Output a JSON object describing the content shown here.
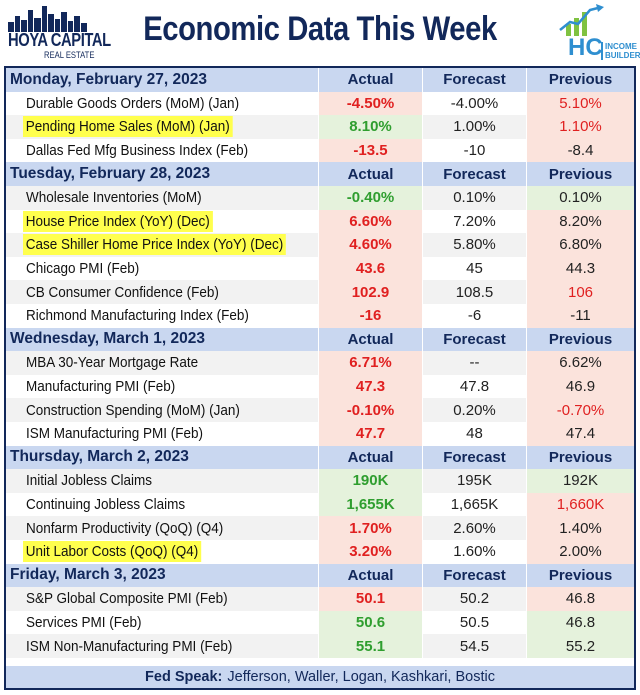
{
  "header": {
    "logo_left_line1": "HOYA CAPITAL",
    "logo_left_line2": "REAL ESTATE",
    "title": "Economic Data This Week",
    "logo_right_hc": "HC",
    "logo_right_line1": "INCOME",
    "logo_right_line2": "BUILDER"
  },
  "columns": {
    "actual": "Actual",
    "forecast": "Forecast",
    "previous": "Previous"
  },
  "days": [
    {
      "label": "Monday, February 27, 2023",
      "rows": [
        {
          "name": "Durable Goods Orders (MoM) (Jan)",
          "actual": "-4.50%",
          "forecast": "-4.00%",
          "previous": "5.10%",
          "highlight": false,
          "actual_tone": "red",
          "previous_tone": "red"
        },
        {
          "name": "Pending Home Sales (MoM) (Jan)",
          "actual": "8.10%",
          "forecast": "1.00%",
          "previous": "1.10%",
          "highlight": true,
          "actual_tone": "green",
          "previous_tone": "red"
        },
        {
          "name": "Dallas Fed Mfg Business Index (Feb)",
          "actual": "-13.5",
          "forecast": "-10",
          "previous": "-8.4",
          "highlight": false,
          "actual_tone": "red",
          "previous_tone": "plain-red"
        }
      ]
    },
    {
      "label": "Tuesday, February 28, 2023",
      "rows": [
        {
          "name": "Wholesale Inventories (MoM)",
          "actual": "-0.40%",
          "forecast": "0.10%",
          "previous": "0.10%",
          "highlight": false,
          "actual_tone": "green",
          "previous_tone": "plain-green"
        },
        {
          "name": "House Price Index (YoY) (Dec)",
          "actual": "6.60%",
          "forecast": "7.20%",
          "previous": "8.20%",
          "highlight": true,
          "actual_tone": "red",
          "previous_tone": "plain-red"
        },
        {
          "name": "Case Shiller Home Price Index (YoY) (Dec)",
          "actual": "4.60%",
          "forecast": "5.80%",
          "previous": "6.80%",
          "highlight": true,
          "actual_tone": "red",
          "previous_tone": "plain-red"
        },
        {
          "name": "Chicago PMI (Feb)",
          "actual": "43.6",
          "forecast": "45",
          "previous": "44.3",
          "highlight": false,
          "actual_tone": "red",
          "previous_tone": "plain-red"
        },
        {
          "name": "CB Consumer Confidence (Feb)",
          "actual": "102.9",
          "forecast": "108.5",
          "previous": "106",
          "highlight": false,
          "actual_tone": "red",
          "previous_tone": "red"
        },
        {
          "name": "Richmond Manufacturing Index (Feb)",
          "actual": "-16",
          "forecast": "-6",
          "previous": "-11",
          "highlight": false,
          "actual_tone": "red",
          "previous_tone": "plain-red"
        }
      ]
    },
    {
      "label": "Wednesday, March 1, 2023",
      "rows": [
        {
          "name": "MBA 30-Year Mortgage Rate",
          "actual": "6.71%",
          "forecast": "--",
          "previous": "6.62%",
          "highlight": false,
          "actual_tone": "red",
          "previous_tone": "plain-red"
        },
        {
          "name": "Manufacturing PMI (Feb)",
          "actual": "47.3",
          "forecast": "47.8",
          "previous": "46.9",
          "highlight": false,
          "actual_tone": "red",
          "previous_tone": "plain-red"
        },
        {
          "name": "Construction Spending (MoM) (Jan)",
          "actual": "-0.10%",
          "forecast": "0.20%",
          "previous": "-0.70%",
          "highlight": false,
          "actual_tone": "red",
          "previous_tone": "red"
        },
        {
          "name": "ISM Manufacturing PMI (Feb)",
          "actual": "47.7",
          "forecast": "48",
          "previous": "47.4",
          "highlight": false,
          "actual_tone": "red",
          "previous_tone": "plain-red"
        }
      ]
    },
    {
      "label": "Thursday, March 2, 2023",
      "rows": [
        {
          "name": "Initial Jobless Claims",
          "actual": "190K",
          "forecast": "195K",
          "previous": "192K",
          "highlight": false,
          "actual_tone": "green",
          "previous_tone": "plain-green"
        },
        {
          "name": "Continuing Jobless Claims",
          "actual": "1,655K",
          "forecast": "1,665K",
          "previous": "1,660K",
          "highlight": false,
          "actual_tone": "green",
          "previous_tone": "red"
        },
        {
          "name": "Nonfarm Productivity (QoQ) (Q4)",
          "actual": "1.70%",
          "forecast": "2.60%",
          "previous": "1.40%",
          "highlight": false,
          "actual_tone": "red",
          "previous_tone": "plain-red"
        },
        {
          "name": "Unit Labor Costs (QoQ) (Q4)",
          "actual": "3.20%",
          "forecast": "1.60%",
          "previous": "2.00%",
          "highlight": true,
          "actual_tone": "red",
          "previous_tone": "plain-red"
        }
      ]
    },
    {
      "label": "Friday, March 3, 2023",
      "rows": [
        {
          "name": "S&P Global Composite PMI (Feb)",
          "actual": "50.1",
          "forecast": "50.2",
          "previous": "46.8",
          "highlight": false,
          "actual_tone": "red",
          "previous_tone": "plain-red"
        },
        {
          "name": "Services PMI (Feb)",
          "actual": "50.6",
          "forecast": "50.5",
          "previous": "46.8",
          "highlight": false,
          "actual_tone": "green",
          "previous_tone": "plain-green"
        },
        {
          "name": "ISM Non-Manufacturing PMI (Feb)",
          "actual": "55.1",
          "forecast": "54.5",
          "previous": "55.2",
          "highlight": false,
          "actual_tone": "green",
          "previous_tone": "plain-green"
        }
      ]
    }
  ],
  "footer": {
    "label": "Fed Speak:",
    "text": "Jefferson, Waller, Logan, Kashkari, Bostic"
  },
  "colors": {
    "navy": "#12285a",
    "day_band": "#c9d7f0",
    "actual_red": "#e02020",
    "actual_green": "#2f9e2f",
    "red_bg": "#fbe3dc",
    "green_bg": "#e5f2dc",
    "highlight": "#ffff4d"
  }
}
